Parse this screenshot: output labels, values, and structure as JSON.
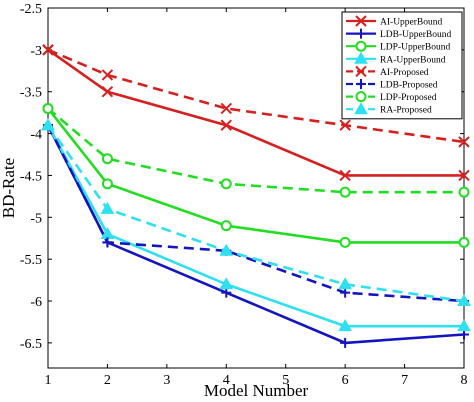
{
  "chart_data": {
    "type": "line",
    "xlabel": "Model Number",
    "ylabel": "BD-Rate",
    "xlim": [
      1,
      8
    ],
    "ylim": [
      -6.8,
      -2.5
    ],
    "xticks": [
      1,
      2,
      3,
      4,
      5,
      6,
      7,
      8
    ],
    "xtick_labels": [
      "1",
      "2",
      "3",
      "4",
      "5",
      "6",
      "7",
      "8"
    ],
    "yticks": [
      -6.5,
      -6,
      -5.5,
      -5,
      -4.5,
      -4,
      -3.5,
      -3,
      -2.5
    ],
    "ytick_labels": [
      "-6.5",
      "-6",
      "-5.5",
      "-5",
      "-4.5",
      "-4",
      "-3.5",
      "-3",
      "-2.5"
    ],
    "grid": false,
    "legend_position": "top-right",
    "x": [
      1,
      2,
      4,
      6,
      8
    ],
    "series": [
      {
        "name": "AI-UpperBound",
        "color": "#d62020",
        "dash": "solid",
        "marker": "x",
        "values": [
          -3.0,
          -3.5,
          -3.9,
          -4.5,
          -4.5
        ]
      },
      {
        "name": "LDB-UpperBound",
        "color": "#1414c0",
        "dash": "solid",
        "marker": "plus",
        "values": [
          -3.9,
          -5.3,
          -5.9,
          -6.5,
          -6.4
        ]
      },
      {
        "name": "LDP-UpperBound",
        "color": "#22dd22",
        "dash": "solid",
        "marker": "circle",
        "values": [
          -3.7,
          -4.6,
          -5.1,
          -5.3,
          -5.3
        ]
      },
      {
        "name": "RA-UpperBound",
        "color": "#2ee0f0",
        "dash": "solid",
        "marker": "triangle",
        "values": [
          -3.9,
          -5.2,
          -5.8,
          -6.3,
          -6.3
        ]
      },
      {
        "name": "AI-Proposed",
        "color": "#d62020",
        "dash": "dashed",
        "marker": "x",
        "values": [
          -3.0,
          -3.3,
          -3.7,
          -3.9,
          -4.1
        ]
      },
      {
        "name": "LDB-Proposed",
        "color": "#1414c0",
        "dash": "dashed",
        "marker": "plus",
        "values": [
          -3.9,
          -5.3,
          -5.4,
          -5.9,
          -6.0
        ]
      },
      {
        "name": "LDP-Proposed",
        "color": "#22dd22",
        "dash": "dashed",
        "marker": "circle",
        "values": [
          -3.7,
          -4.3,
          -4.6,
          -4.7,
          -4.7
        ]
      },
      {
        "name": "RA-Proposed",
        "color": "#2ee0f0",
        "dash": "dashed",
        "marker": "triangle",
        "values": [
          -3.9,
          -4.9,
          -5.4,
          -5.8,
          -6.0
        ]
      }
    ]
  }
}
